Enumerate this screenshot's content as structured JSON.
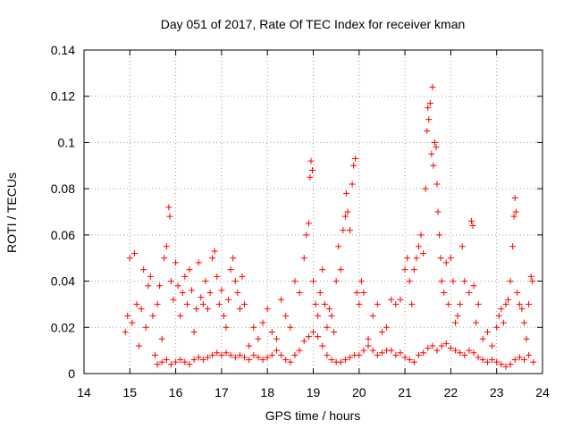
{
  "chart_data": {
    "type": "scatter",
    "title": "Day 051 of 2017, Rate Of TEC Index for receiver kman",
    "xlabel": "GPS time / hours",
    "ylabel": "ROTI / TECUs",
    "xlim": [
      14,
      24
    ],
    "ylim": [
      0,
      0.14
    ],
    "x_ticks": [
      "14",
      "15",
      "16",
      "17",
      "18",
      "19",
      "20",
      "21",
      "22",
      "23",
      "24"
    ],
    "y_ticks": [
      "0",
      "0.02",
      "0.04",
      "0.06",
      "0.08",
      "0.1",
      "0.12",
      "0.14"
    ],
    "grid": true,
    "marker": "plus",
    "color": "#ff0000",
    "series": [
      {
        "points": [
          [
            14.9,
            0.018
          ],
          [
            14.95,
            0.025
          ],
          [
            15.0,
            0.05
          ],
          [
            15.05,
            0.022
          ],
          [
            15.1,
            0.052
          ],
          [
            15.15,
            0.03
          ],
          [
            15.2,
            0.012
          ],
          [
            15.25,
            0.028
          ],
          [
            15.3,
            0.045
          ],
          [
            15.35,
            0.02
          ],
          [
            15.4,
            0.038
          ],
          [
            15.45,
            0.042
          ],
          [
            15.5,
            0.025
          ],
          [
            15.55,
            0.008
          ],
          [
            15.6,
            0.03
          ],
          [
            15.65,
            0.038
          ],
          [
            15.7,
            0.015
          ],
          [
            15.75,
            0.05
          ],
          [
            15.8,
            0.055
          ],
          [
            15.85,
            0.072
          ],
          [
            15.87,
            0.068
          ],
          [
            15.9,
            0.04
          ],
          [
            15.95,
            0.032
          ],
          [
            16.0,
            0.048
          ],
          [
            16.05,
            0.038
          ],
          [
            16.1,
            0.025
          ],
          [
            16.15,
            0.035
          ],
          [
            16.2,
            0.042
          ],
          [
            16.25,
            0.03
          ],
          [
            16.3,
            0.045
          ],
          [
            16.35,
            0.036
          ],
          [
            16.4,
            0.018
          ],
          [
            16.45,
            0.028
          ],
          [
            16.5,
            0.048
          ],
          [
            16.55,
            0.033
          ],
          [
            16.6,
            0.03
          ],
          [
            16.65,
            0.04
          ],
          [
            16.7,
            0.028
          ],
          [
            16.75,
            0.035
          ],
          [
            16.8,
            0.05
          ],
          [
            16.85,
            0.053
          ],
          [
            16.9,
            0.042
          ],
          [
            16.95,
            0.03
          ],
          [
            17.0,
            0.036
          ],
          [
            17.05,
            0.025
          ],
          [
            17.1,
            0.02
          ],
          [
            17.15,
            0.032
          ],
          [
            17.2,
            0.045
          ],
          [
            17.25,
            0.05
          ],
          [
            17.3,
            0.04
          ],
          [
            17.35,
            0.035
          ],
          [
            17.4,
            0.028
          ],
          [
            17.45,
            0.042
          ],
          [
            17.5,
            0.03
          ],
          [
            17.6,
            0.012
          ],
          [
            17.7,
            0.02
          ],
          [
            17.8,
            0.015
          ],
          [
            17.9,
            0.022
          ],
          [
            18.0,
            0.028
          ],
          [
            18.1,
            0.018
          ],
          [
            18.2,
            0.015
          ],
          [
            18.3,
            0.032
          ],
          [
            18.4,
            0.025
          ],
          [
            18.5,
            0.02
          ],
          [
            18.6,
            0.04
          ],
          [
            18.7,
            0.035
          ],
          [
            18.8,
            0.05
          ],
          [
            18.85,
            0.06
          ],
          [
            18.9,
            0.065
          ],
          [
            18.93,
            0.085
          ],
          [
            18.95,
            0.092
          ],
          [
            18.98,
            0.088
          ],
          [
            19.0,
            0.04
          ],
          [
            19.05,
            0.03
          ],
          [
            19.1,
            0.025
          ],
          [
            19.15,
            0.035
          ],
          [
            19.2,
            0.045
          ],
          [
            19.25,
            0.03
          ],
          [
            19.3,
            0.02
          ],
          [
            19.35,
            0.028
          ],
          [
            19.4,
            0.025
          ],
          [
            19.45,
            0.018
          ],
          [
            19.5,
            0.04
          ],
          [
            19.55,
            0.055
          ],
          [
            19.6,
            0.045
          ],
          [
            19.65,
            0.062
          ],
          [
            19.7,
            0.068
          ],
          [
            19.72,
            0.078
          ],
          [
            19.75,
            0.07
          ],
          [
            19.8,
            0.062
          ],
          [
            19.85,
            0.082
          ],
          [
            19.88,
            0.09
          ],
          [
            19.92,
            0.093
          ],
          [
            19.95,
            0.035
          ],
          [
            20.0,
            0.03
          ],
          [
            20.05,
            0.04
          ],
          [
            20.1,
            0.035
          ],
          [
            20.2,
            0.015
          ],
          [
            20.3,
            0.025
          ],
          [
            20.4,
            0.03
          ],
          [
            20.5,
            0.018
          ],
          [
            20.6,
            0.02
          ],
          [
            20.7,
            0.032
          ],
          [
            20.8,
            0.03
          ],
          [
            20.9,
            0.032
          ],
          [
            21.0,
            0.045
          ],
          [
            21.05,
            0.05
          ],
          [
            21.1,
            0.04
          ],
          [
            21.15,
            0.03
          ],
          [
            21.2,
            0.045
          ],
          [
            21.25,
            0.05
          ],
          [
            21.3,
            0.055
          ],
          [
            21.35,
            0.06
          ],
          [
            21.4,
            0.052
          ],
          [
            21.45,
            0.08
          ],
          [
            21.48,
            0.105
          ],
          [
            21.5,
            0.115
          ],
          [
            21.52,
            0.11
          ],
          [
            21.55,
            0.117
          ],
          [
            21.58,
            0.095
          ],
          [
            21.6,
            0.124
          ],
          [
            21.62,
            0.09
          ],
          [
            21.65,
            0.1
          ],
          [
            21.68,
            0.098
          ],
          [
            21.7,
            0.082
          ],
          [
            21.72,
            0.07
          ],
          [
            21.75,
            0.06
          ],
          [
            21.78,
            0.05
          ],
          [
            21.8,
            0.04
          ],
          [
            21.85,
            0.035
          ],
          [
            21.9,
            0.048
          ],
          [
            21.95,
            0.03
          ],
          [
            22.0,
            0.05
          ],
          [
            22.05,
            0.04
          ],
          [
            22.1,
            0.022
          ],
          [
            22.15,
            0.025
          ],
          [
            22.2,
            0.03
          ],
          [
            22.25,
            0.055
          ],
          [
            22.3,
            0.04
          ],
          [
            22.4,
            0.035
          ],
          [
            22.45,
            0.066
          ],
          [
            22.48,
            0.064
          ],
          [
            22.5,
            0.038
          ],
          [
            22.55,
            0.022
          ],
          [
            22.6,
            0.03
          ],
          [
            22.7,
            0.015
          ],
          [
            22.8,
            0.018
          ],
          [
            22.9,
            0.012
          ],
          [
            23.0,
            0.02
          ],
          [
            23.05,
            0.025
          ],
          [
            23.1,
            0.028
          ],
          [
            23.15,
            0.022
          ],
          [
            23.2,
            0.03
          ],
          [
            23.25,
            0.032
          ],
          [
            23.3,
            0.04
          ],
          [
            23.35,
            0.055
          ],
          [
            23.38,
            0.068
          ],
          [
            23.4,
            0.076
          ],
          [
            23.42,
            0.07
          ],
          [
            23.45,
            0.035
          ],
          [
            23.5,
            0.03
          ],
          [
            23.55,
            0.028
          ],
          [
            23.6,
            0.022
          ],
          [
            23.65,
            0.015
          ],
          [
            23.7,
            0.03
          ],
          [
            23.75,
            0.042
          ],
          [
            23.78,
            0.04
          ],
          [
            15.6,
            0.004
          ],
          [
            15.7,
            0.005
          ],
          [
            15.8,
            0.006
          ],
          [
            15.9,
            0.004
          ],
          [
            16.0,
            0.005
          ],
          [
            16.1,
            0.006
          ],
          [
            16.2,
            0.005
          ],
          [
            16.3,
            0.004
          ],
          [
            16.4,
            0.006
          ],
          [
            16.5,
            0.007
          ],
          [
            16.6,
            0.006
          ],
          [
            16.7,
            0.007
          ],
          [
            16.8,
            0.008
          ],
          [
            16.9,
            0.009
          ],
          [
            17.0,
            0.008
          ],
          [
            17.1,
            0.009
          ],
          [
            17.2,
            0.008
          ],
          [
            17.3,
            0.007
          ],
          [
            17.4,
            0.008
          ],
          [
            17.5,
            0.007
          ],
          [
            17.6,
            0.006
          ],
          [
            17.7,
            0.008
          ],
          [
            17.8,
            0.007
          ],
          [
            17.9,
            0.006
          ],
          [
            18.0,
            0.007
          ],
          [
            18.1,
            0.008
          ],
          [
            18.2,
            0.01
          ],
          [
            18.3,
            0.008
          ],
          [
            18.4,
            0.006
          ],
          [
            18.5,
            0.005
          ],
          [
            18.6,
            0.008
          ],
          [
            18.7,
            0.01
          ],
          [
            18.8,
            0.014
          ],
          [
            18.9,
            0.016
          ],
          [
            19.0,
            0.018
          ],
          [
            19.1,
            0.016
          ],
          [
            19.2,
            0.012
          ],
          [
            19.3,
            0.008
          ],
          [
            19.4,
            0.006
          ],
          [
            19.5,
            0.005
          ],
          [
            19.6,
            0.005
          ],
          [
            19.7,
            0.006
          ],
          [
            19.8,
            0.007
          ],
          [
            19.9,
            0.008
          ],
          [
            20.0,
            0.008
          ],
          [
            20.1,
            0.01
          ],
          [
            20.2,
            0.012
          ],
          [
            20.3,
            0.01
          ],
          [
            20.4,
            0.008
          ],
          [
            20.5,
            0.009
          ],
          [
            20.6,
            0.01
          ],
          [
            20.7,
            0.01
          ],
          [
            20.8,
            0.008
          ],
          [
            20.9,
            0.009
          ],
          [
            21.0,
            0.007
          ],
          [
            21.1,
            0.006
          ],
          [
            21.2,
            0.005
          ],
          [
            21.3,
            0.008
          ],
          [
            21.4,
            0.009
          ],
          [
            21.5,
            0.011
          ],
          [
            21.6,
            0.012
          ],
          [
            21.7,
            0.01
          ],
          [
            21.8,
            0.012
          ],
          [
            21.9,
            0.013
          ],
          [
            22.0,
            0.011
          ],
          [
            22.1,
            0.01
          ],
          [
            22.2,
            0.009
          ],
          [
            22.3,
            0.008
          ],
          [
            22.4,
            0.01
          ],
          [
            22.5,
            0.009
          ],
          [
            22.6,
            0.007
          ],
          [
            22.7,
            0.006
          ],
          [
            22.8,
            0.005
          ],
          [
            22.9,
            0.006
          ],
          [
            23.0,
            0.005
          ],
          [
            23.1,
            0.004
          ],
          [
            23.2,
            0.003
          ],
          [
            23.3,
            0.004
          ],
          [
            23.4,
            0.006
          ],
          [
            23.5,
            0.007
          ],
          [
            23.6,
            0.006
          ],
          [
            23.7,
            0.008
          ],
          [
            23.8,
            0.005
          ]
        ]
      }
    ]
  }
}
